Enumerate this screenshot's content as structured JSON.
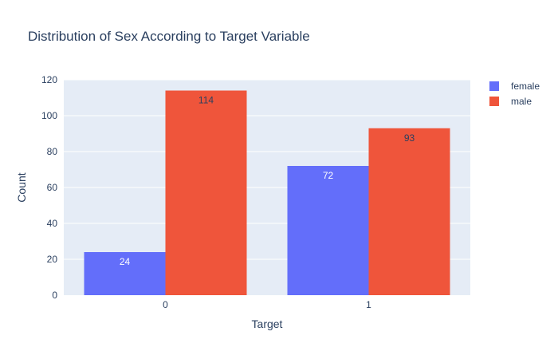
{
  "chart_data": {
    "type": "bar",
    "title": "Distribution of Sex According to Target Variable",
    "xlabel": "Target",
    "ylabel": "Count",
    "categories": [
      "0",
      "1"
    ],
    "series": [
      {
        "name": "female",
        "values": [
          24,
          72
        ],
        "color": "#636efa",
        "label_color": "#ffffff"
      },
      {
        "name": "male",
        "values": [
          114,
          93
        ],
        "color": "#ef553b",
        "label_color": "#2a3f5f"
      }
    ],
    "ylim": [
      0,
      120
    ],
    "yticks": [
      0,
      20,
      40,
      60,
      80,
      100,
      120
    ],
    "grid": true,
    "legend_position": "top-right",
    "colors": {
      "plot_background": "#e5ecf6",
      "gridline": "#ffffff",
      "text": "#2a3f5f"
    }
  }
}
